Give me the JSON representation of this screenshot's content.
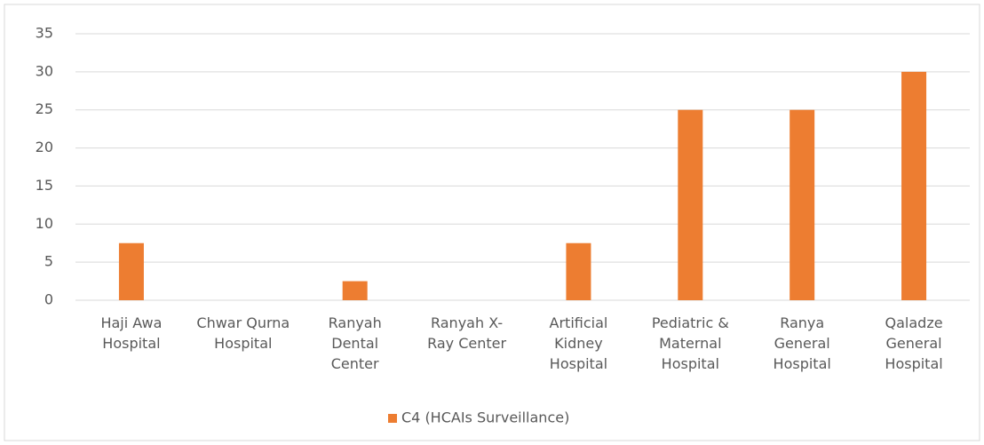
{
  "chart_data": {
    "type": "bar",
    "categories": [
      "Haji Awa Hospital",
      "Chwar Qurna Hospital",
      "Ranyah Dental Center",
      "Ranyah X-Ray Center",
      "Artificial Kidney Hospital",
      "Pediatric & Maternal Hospital",
      "Ranya General Hospital",
      "Qaladze General Hospital"
    ],
    "series": [
      {
        "name": "C4 (HCAIs Surveillance)",
        "color": "#ed7d31",
        "values": [
          7.5,
          0,
          2.5,
          0,
          7.5,
          25,
          25,
          30
        ]
      }
    ],
    "ylim": [
      0,
      35
    ],
    "yticks": [
      0,
      5,
      10,
      15,
      20,
      25,
      30,
      35
    ],
    "grid": true,
    "legend": "bottom"
  }
}
